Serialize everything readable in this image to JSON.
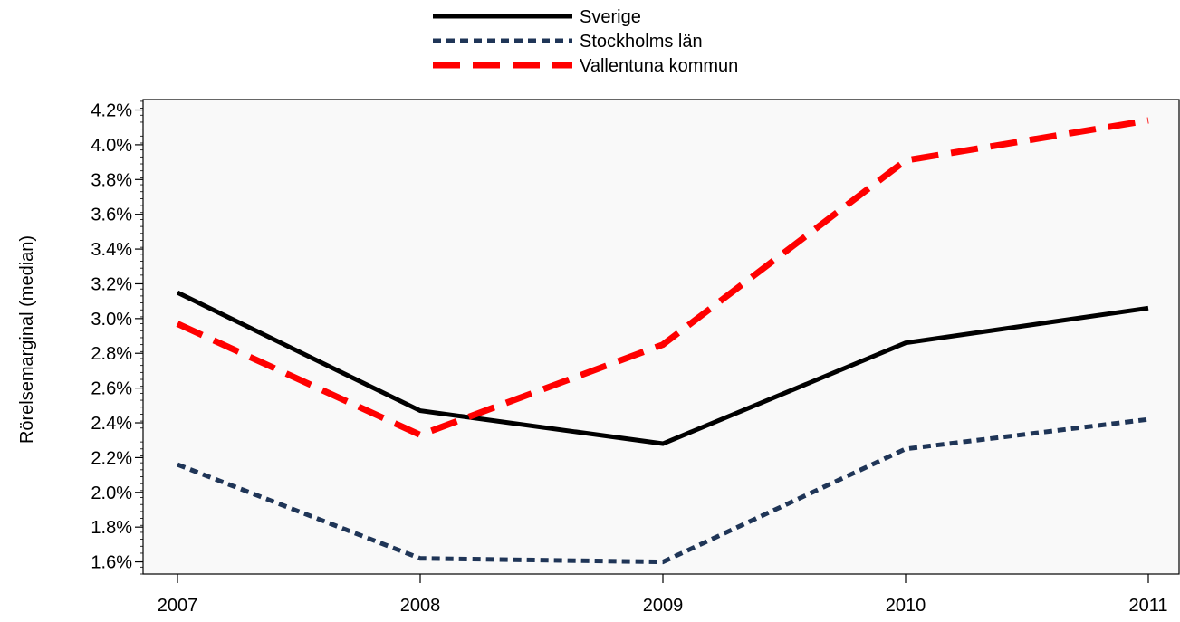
{
  "chart_data": {
    "type": "line",
    "title": "",
    "xlabel": "",
    "ylabel": "Rörelsemarginal (median)",
    "categories": [
      "2007",
      "2008",
      "2009",
      "2010",
      "2011"
    ],
    "ylim": [
      1.53,
      4.26
    ],
    "yticks": [
      1.6,
      1.8,
      2.0,
      2.2,
      2.4,
      2.6,
      2.8,
      3.0,
      3.2,
      3.4,
      3.6,
      3.8,
      4.0,
      4.2
    ],
    "ytick_labels": [
      "1.6%",
      "1.8%",
      "2.0%",
      "2.2%",
      "2.4%",
      "2.6%",
      "2.8%",
      "3.0%",
      "3.2%",
      "3.4%",
      "3.6%",
      "3.8%",
      "4.0%",
      "4.2%"
    ],
    "y_unit": "%",
    "legend_position": "top-center",
    "grid": false,
    "plot_background": "#f9f9f9",
    "series": [
      {
        "name": "Sverige",
        "values": [
          3.15,
          2.47,
          2.28,
          2.86,
          3.06
        ],
        "color": "#000000",
        "style": "solid"
      },
      {
        "name": "Stockholms län",
        "values": [
          2.16,
          1.62,
          1.6,
          2.25,
          2.42
        ],
        "color": "#1f3557",
        "style": "dotted"
      },
      {
        "name": "Vallentuna kommun",
        "values": [
          2.97,
          2.33,
          2.85,
          3.91,
          4.14
        ],
        "color": "#ff0000",
        "style": "dashed"
      }
    ]
  }
}
